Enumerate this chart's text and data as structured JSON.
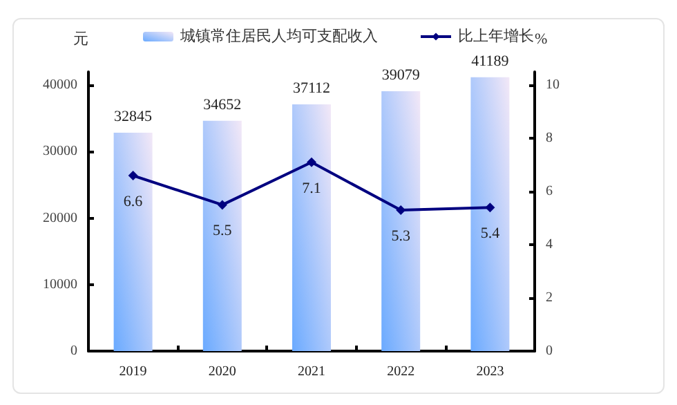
{
  "chart_data": {
    "type": "bar",
    "categories": [
      "2019",
      "2020",
      "2021",
      "2022",
      "2023"
    ],
    "series": [
      {
        "name": "城镇常住居民人均可支配收入",
        "color": "#6aaaff",
        "values": [
          32845,
          34652,
          37112,
          39079,
          41189
        ]
      },
      {
        "name": "比上年增长",
        "type": "line",
        "axis": "y2",
        "color": "#000080",
        "values": [
          6.6,
          5.5,
          7.1,
          5.3,
          5.4
        ]
      }
    ],
    "data_labels": true,
    "ylabel": "元",
    "y2label": "%",
    "ylim": [
      0,
      42000
    ],
    "yticks": [
      0,
      10000,
      20000,
      30000,
      40000
    ],
    "y2lim": [
      0,
      10.5
    ],
    "y2ticks": [
      0,
      2,
      4,
      6,
      8,
      10
    ],
    "legend": "top",
    "grid": false,
    "marker": "diamond",
    "line_style": "solid"
  }
}
